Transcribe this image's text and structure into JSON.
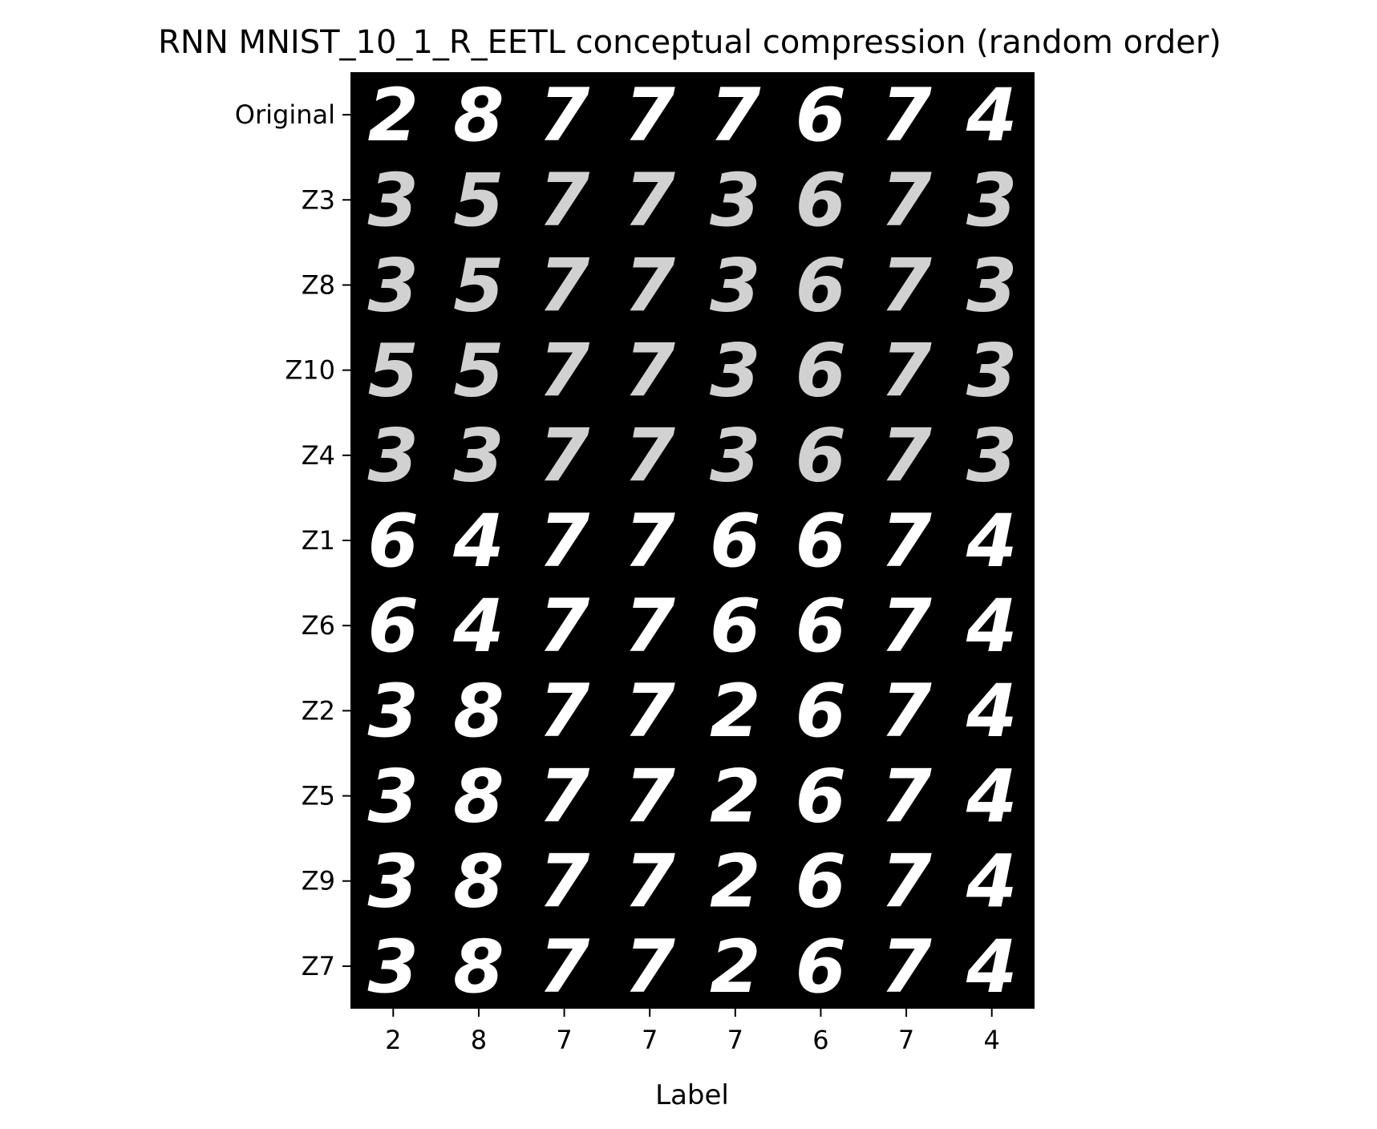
{
  "chart_data": {
    "type": "heatmap",
    "title": "RNN MNIST_10_1_R_EETL conceptual compression (random order)",
    "xlabel": "Label",
    "ylabel": "",
    "row_labels": [
      "Original",
      "Z3",
      "Z8",
      "Z10",
      "Z4",
      "Z1",
      "Z6",
      "Z2",
      "Z5",
      "Z9",
      "Z7"
    ],
    "column_labels": [
      "2",
      "8",
      "7",
      "7",
      "7",
      "6",
      "7",
      "4"
    ],
    "cells": [
      [
        "2",
        "8",
        "7",
        "7",
        "7",
        "6",
        "7",
        "4"
      ],
      [
        "3",
        "5",
        "7",
        "7",
        "3",
        "6",
        "7",
        "3"
      ],
      [
        "3",
        "5",
        "7",
        "7",
        "3",
        "6",
        "7",
        "3"
      ],
      [
        "5",
        "5",
        "7",
        "7",
        "3",
        "6",
        "7",
        "3"
      ],
      [
        "3",
        "3",
        "7",
        "7",
        "3",
        "6",
        "7",
        "3"
      ],
      [
        "6",
        "4",
        "7",
        "7",
        "6",
        "6",
        "7",
        "4"
      ],
      [
        "6",
        "4",
        "7",
        "7",
        "6",
        "6",
        "7",
        "4"
      ],
      [
        "3",
        "8",
        "7",
        "7",
        "2",
        "6",
        "7",
        "4"
      ],
      [
        "3",
        "8",
        "7",
        "7",
        "2",
        "6",
        "7",
        "4"
      ],
      [
        "3",
        "8",
        "7",
        "7",
        "2",
        "6",
        "7",
        "4"
      ],
      [
        "3",
        "8",
        "7",
        "7",
        "2",
        "6",
        "7",
        "4"
      ]
    ],
    "colormap": "gray",
    "background_color": "#000000",
    "grid": false,
    "legend": "none"
  }
}
